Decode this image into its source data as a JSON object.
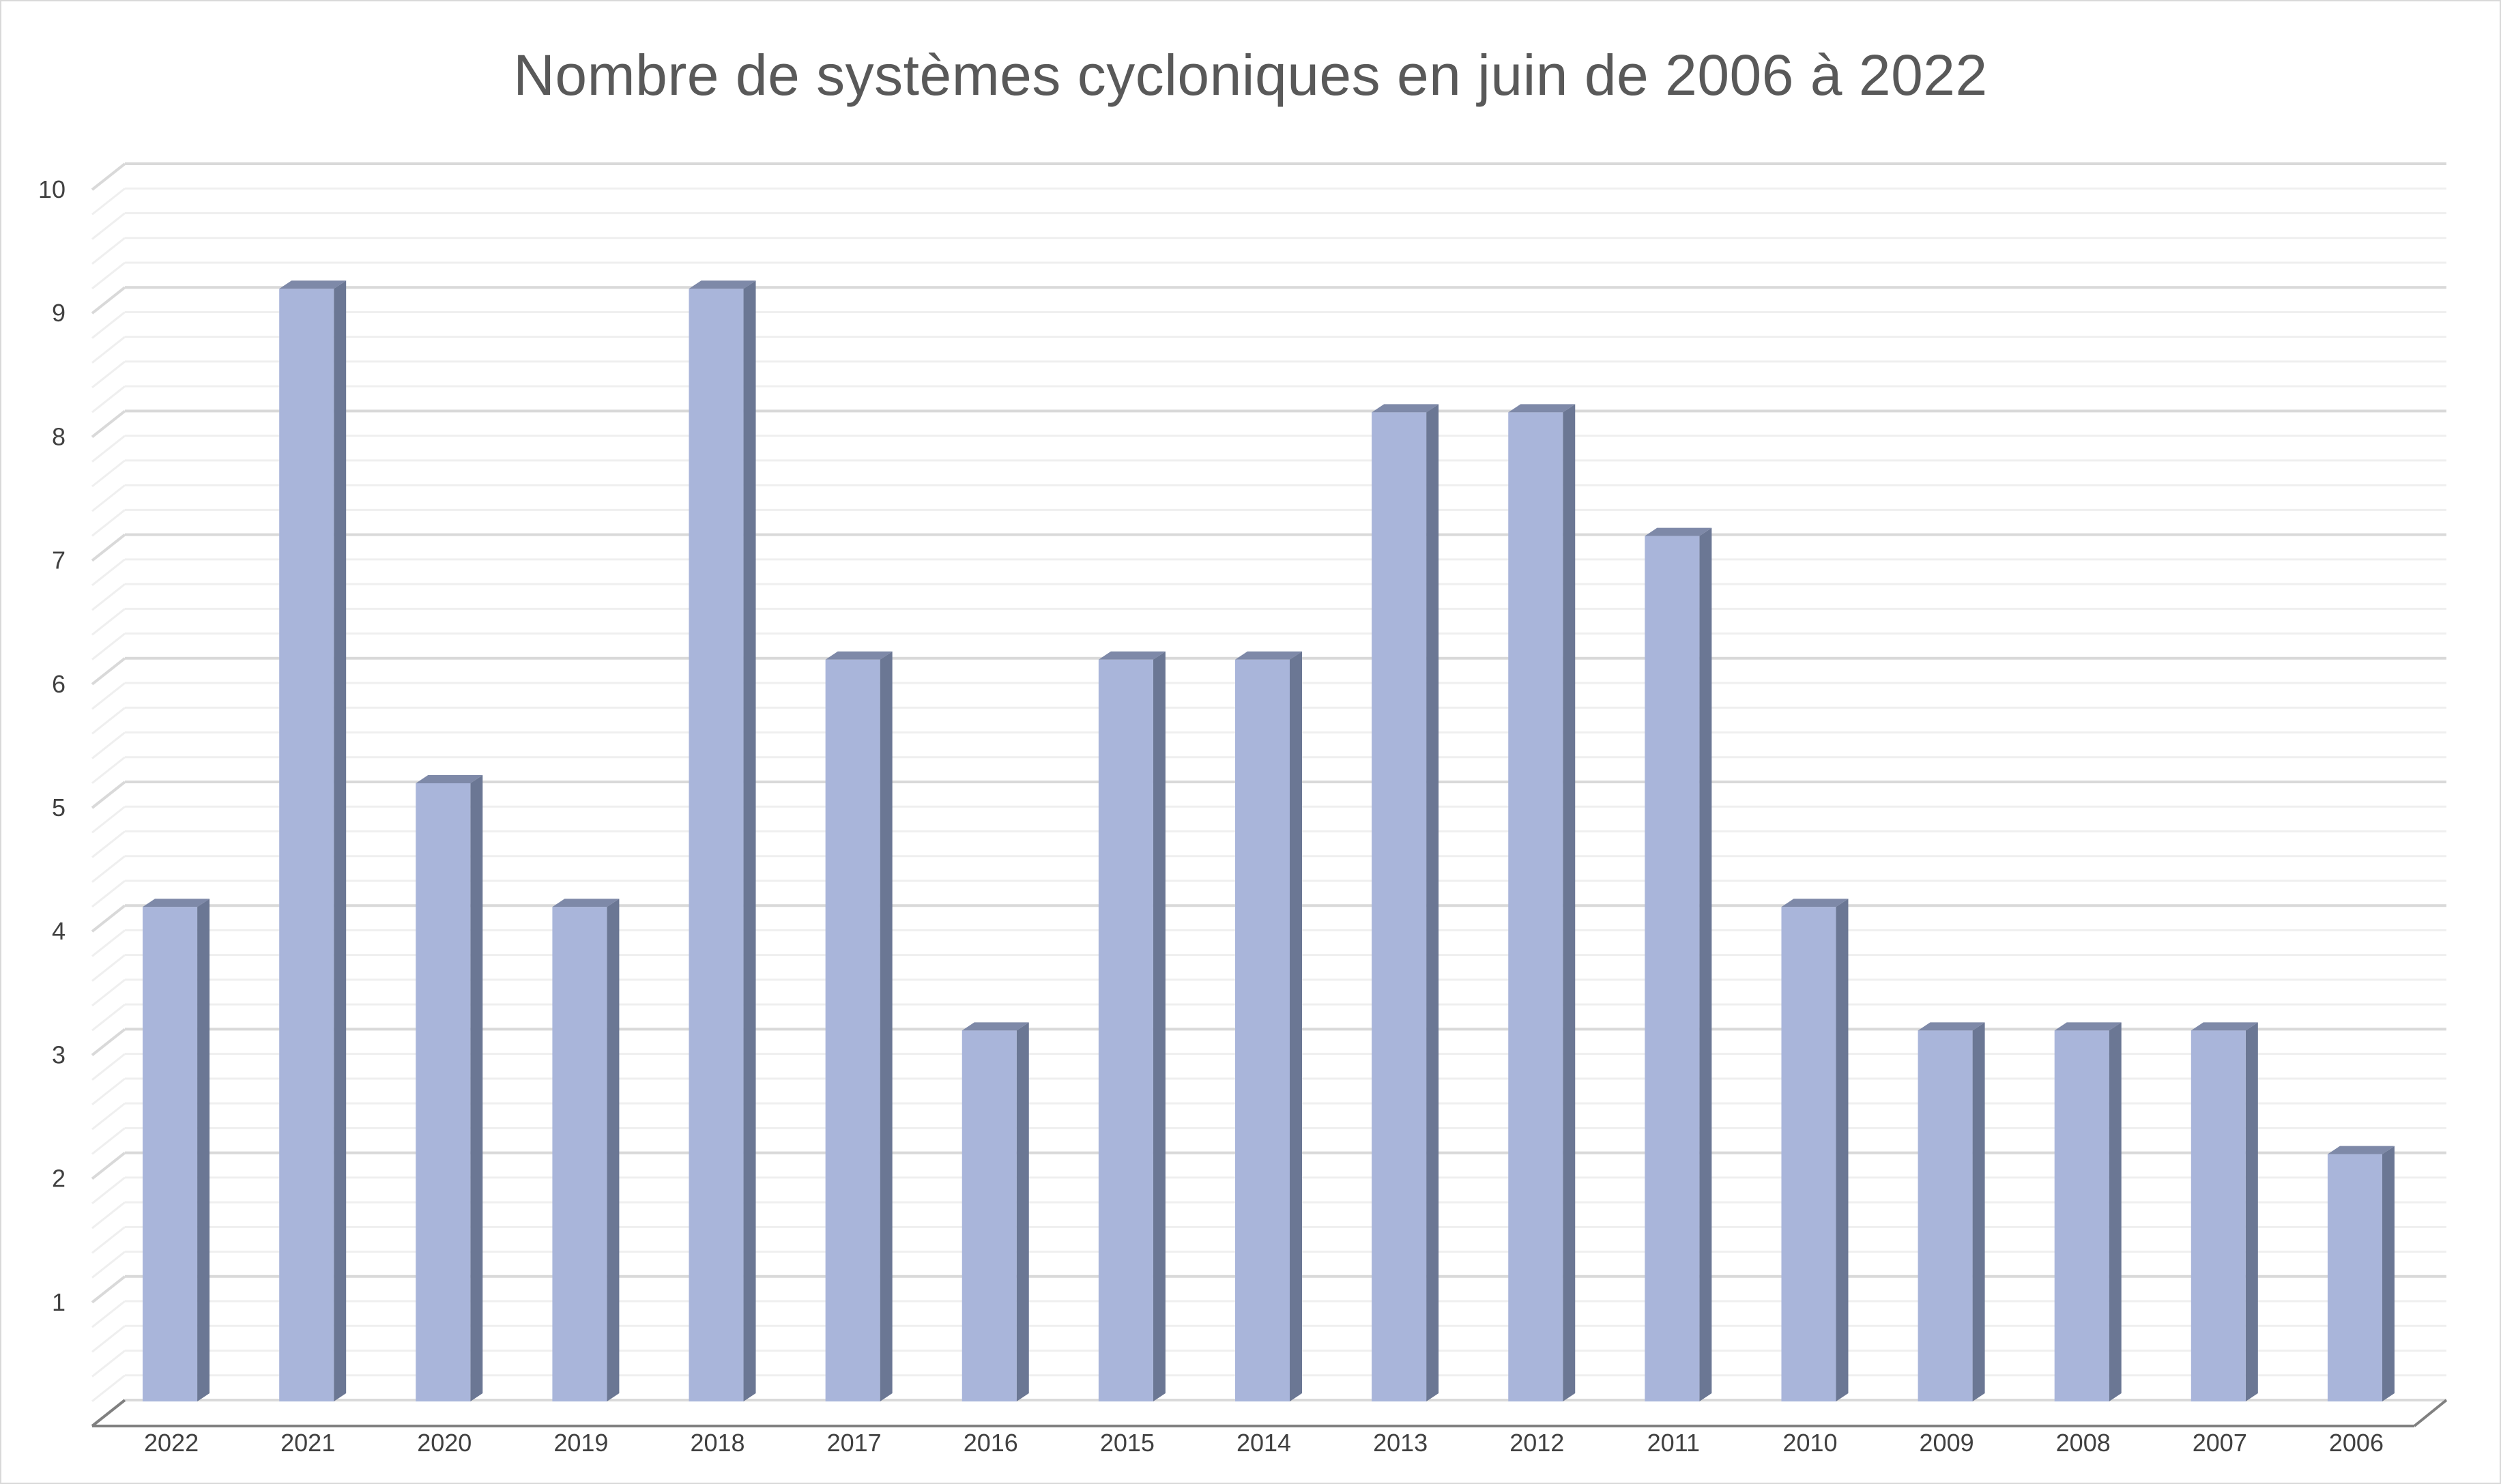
{
  "chart_data": {
    "type": "bar",
    "title": "Nombre de systèmes cycloniques en juin de 2006 à 2022",
    "xlabel": "",
    "ylabel": "",
    "categories": [
      "2022",
      "2021",
      "2020",
      "2019",
      "2018",
      "2017",
      "2016",
      "2015",
      "2014",
      "2013",
      "2012",
      "2011",
      "2010",
      "2009",
      "2008",
      "2007",
      "2006"
    ],
    "values": [
      4,
      9,
      5,
      4,
      9,
      6,
      3,
      6,
      6,
      8,
      8,
      7,
      4,
      3,
      3,
      3,
      2
    ],
    "ylim": [
      0,
      10
    ],
    "yticks": [
      1,
      2,
      3,
      4,
      5,
      6,
      7,
      8,
      9,
      10
    ],
    "minor_gridlines": true,
    "legend": "none",
    "style": "3d-column",
    "colors": {
      "bar_front": "#a9b5da",
      "bar_side": "#6b7794",
      "bar_top": "#7e89a8",
      "major_grid": "#d9d9d9",
      "minor_grid": "#efefef",
      "axis": "#808080"
    }
  }
}
